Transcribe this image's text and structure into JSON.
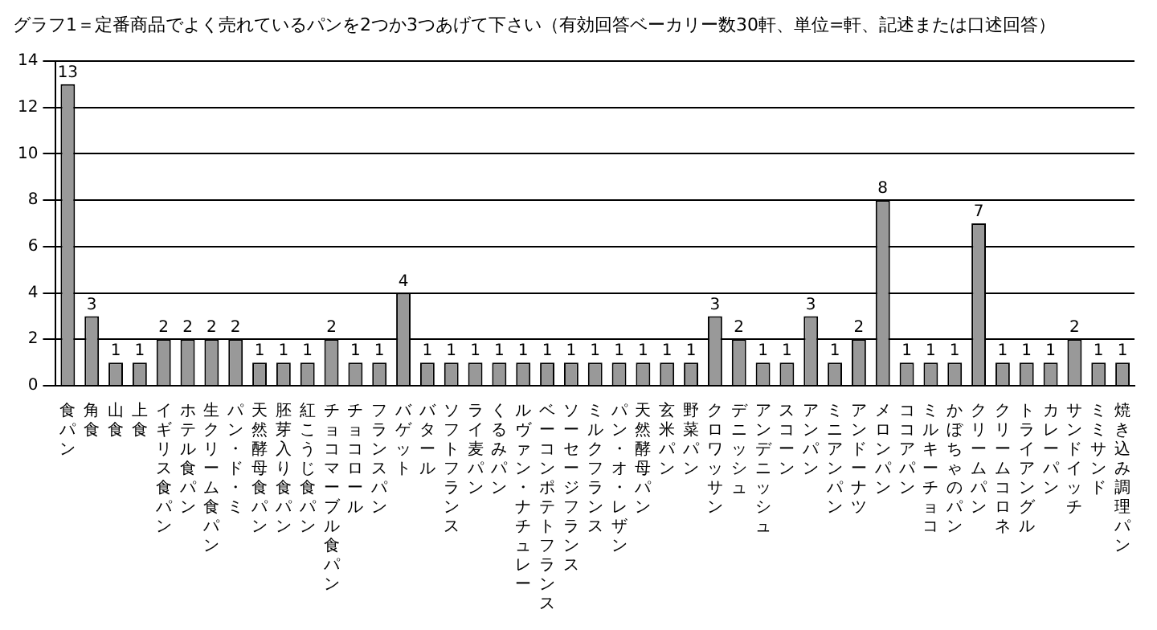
{
  "chart_data": {
    "type": "bar",
    "title": "グラフ1＝定番商品でよく売れているパンを2つか3つあげて下さい（有効回答ベーカリー数30軒、単位=軒、記述または口述回答）",
    "categories": [
      "食パン",
      "角食",
      "山食",
      "上食",
      "イギリス食パン",
      "ホテル食パン",
      "生クリーム食パン",
      "パン・ド・ミ",
      "天然酵母食パン",
      "胚芽入り食パン",
      "紅こうじ食パン",
      "チョコマーブル食パン",
      "チョコロール",
      "フランスパン",
      "バゲット",
      "バタール",
      "ソフトフランス",
      "ライ麦パン",
      "くるみパン",
      "ルヴァン・ナチュレー",
      "ベーコンポテトフランス",
      "ソーセージフランス",
      "ミルクフランス",
      "パン・オ・レザン",
      "天然酵母パン",
      "玄米パン",
      "野菜パン",
      "クロワッサン",
      "デニッシュ",
      "アンデニッシュ",
      "スコーン",
      "アンパン",
      "ミニアンパン",
      "アンドーナツ",
      "メロンパン",
      "ココアパン",
      "ミルキーチョコ",
      "かぼちゃのパン",
      "クリームパン",
      "クリームコロネ",
      "トライアングル",
      "カレーパン",
      "サンドイッチ",
      "ミミサンド",
      "焼き込み調理パン"
    ],
    "values": [
      13,
      3,
      1,
      1,
      2,
      2,
      2,
      2,
      1,
      1,
      1,
      2,
      1,
      1,
      4,
      1,
      1,
      1,
      1,
      1,
      1,
      1,
      1,
      1,
      1,
      1,
      1,
      3,
      2,
      1,
      1,
      3,
      1,
      2,
      8,
      1,
      1,
      1,
      7,
      1,
      1,
      1,
      2,
      1,
      1
    ],
    "color": "#999999",
    "ylim": [
      0,
      14
    ],
    "yticks": [
      0,
      2,
      4,
      6,
      8,
      10,
      12,
      14
    ],
    "grid": "y",
    "data_labels": true
  }
}
